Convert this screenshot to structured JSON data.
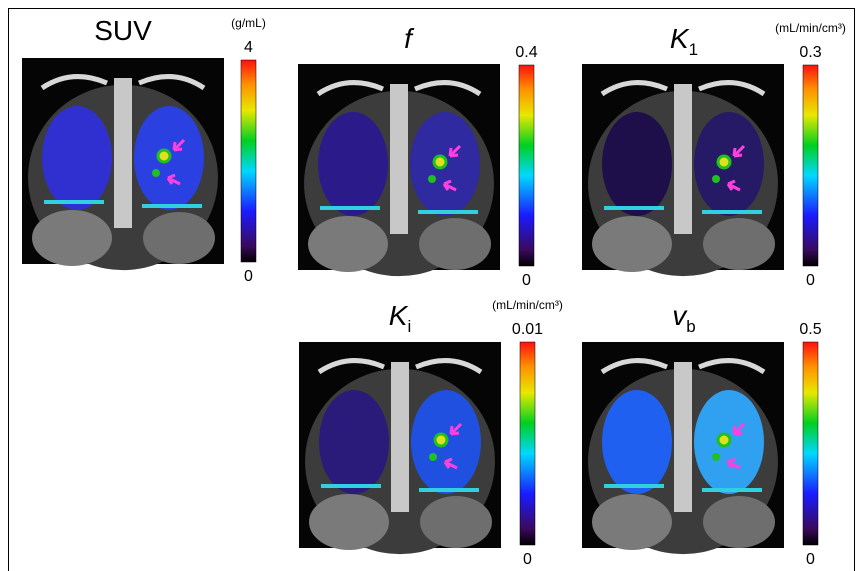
{
  "panels": [
    {
      "title": {
        "symbol": "SUV"
      },
      "unit": "(g/mL)",
      "colorbar": {
        "max": 4,
        "min": 0
      }
    },
    {
      "title": {
        "symbol": "f"
      },
      "colorbar": {
        "max": 0.4,
        "min": 0
      }
    },
    {
      "title": {
        "symbol": "K",
        "subscript": "1"
      },
      "unit": "(mL/min/cm³)",
      "colorbar": {
        "max": 0.3,
        "min": 0
      }
    },
    {
      "title": {
        "symbol": "K",
        "subscript": "i"
      },
      "unit": "(mL/min/cm³)",
      "colorbar": {
        "max": 0.01,
        "min": 0
      }
    },
    {
      "title": {
        "symbol": "v",
        "subscript": "b"
      },
      "colorbar": {
        "max": 0.5,
        "min": 0
      }
    }
  ]
}
